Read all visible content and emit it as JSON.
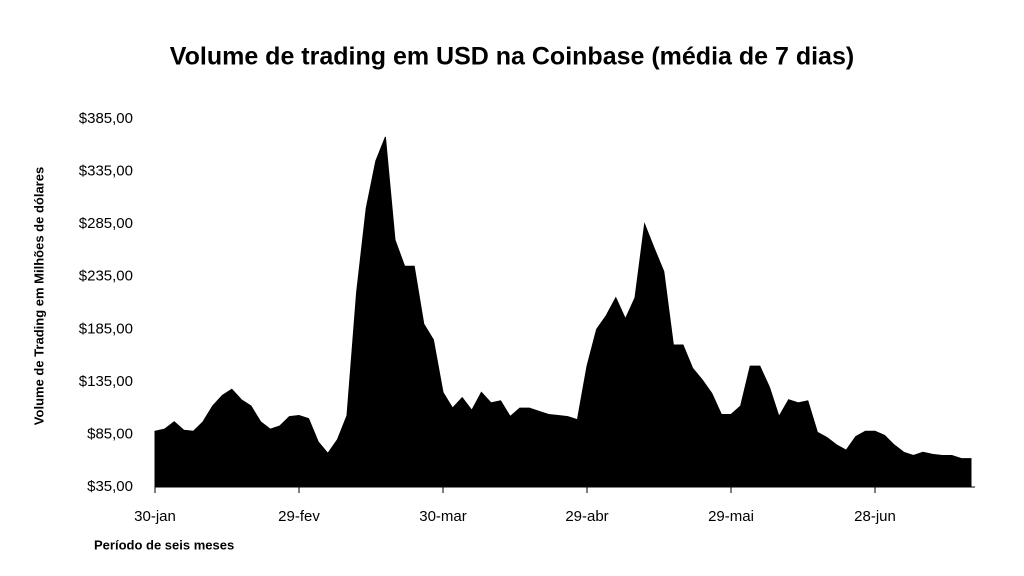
{
  "chart_data": {
    "type": "area",
    "title": "Volume de trading em USD na Coinbase (média de 7 dias)",
    "y_axis_label": "Volume de Trading em Milhões de dólares",
    "x_axis_label": "Período de seis meses",
    "color": "#000000",
    "categories": [
      "30-jan",
      null,
      null,
      null,
      null,
      null,
      null,
      null,
      null,
      null,
      null,
      null,
      null,
      null,
      null,
      "29-fev",
      null,
      null,
      null,
      null,
      null,
      null,
      null,
      null,
      null,
      null,
      null,
      null,
      null,
      null,
      "30-mar",
      null,
      null,
      null,
      null,
      null,
      null,
      null,
      null,
      null,
      null,
      null,
      null,
      null,
      null,
      "29-abr",
      null,
      null,
      null,
      null,
      null,
      null,
      null,
      null,
      null,
      null,
      null,
      null,
      null,
      null,
      "29-mai",
      null,
      null,
      null,
      null,
      null,
      null,
      null,
      null,
      null,
      null,
      null,
      null,
      null,
      null,
      "28-jun",
      null,
      null,
      null,
      null,
      null,
      null,
      null,
      null,
      null,
      null
    ],
    "values": [
      88,
      90,
      97,
      89,
      88,
      97,
      112,
      122,
      128,
      118,
      112,
      97,
      90,
      93,
      102,
      103,
      100,
      78,
      67,
      80,
      103,
      220,
      300,
      345,
      368,
      270,
      245,
      245,
      190,
      175,
      125,
      110,
      120,
      108,
      125,
      115,
      117,
      102,
      110,
      110,
      107,
      104,
      103,
      102,
      99,
      150,
      185,
      198,
      215,
      195,
      215,
      285,
      262,
      240,
      170,
      170,
      148,
      137,
      124,
      104,
      104,
      112,
      150,
      150,
      130,
      102,
      118,
      115,
      117,
      87,
      82,
      75,
      70,
      83,
      88,
      88,
      84,
      75,
      68,
      65,
      68,
      66,
      65,
      65,
      62,
      62
    ],
    "ylim": [
      35,
      385
    ],
    "yticks": [
      {
        "value": 35,
        "label": "$35,00"
      },
      {
        "value": 85,
        "label": "$85,00"
      },
      {
        "value": 135,
        "label": "$135,00"
      },
      {
        "value": 185,
        "label": "$185,00"
      },
      {
        "value": 235,
        "label": "$235,00"
      },
      {
        "value": 285,
        "label": "$285,00"
      },
      {
        "value": 335,
        "label": "$335,00"
      },
      {
        "value": 385,
        "label": "$385,00"
      }
    ],
    "grid": false
  }
}
